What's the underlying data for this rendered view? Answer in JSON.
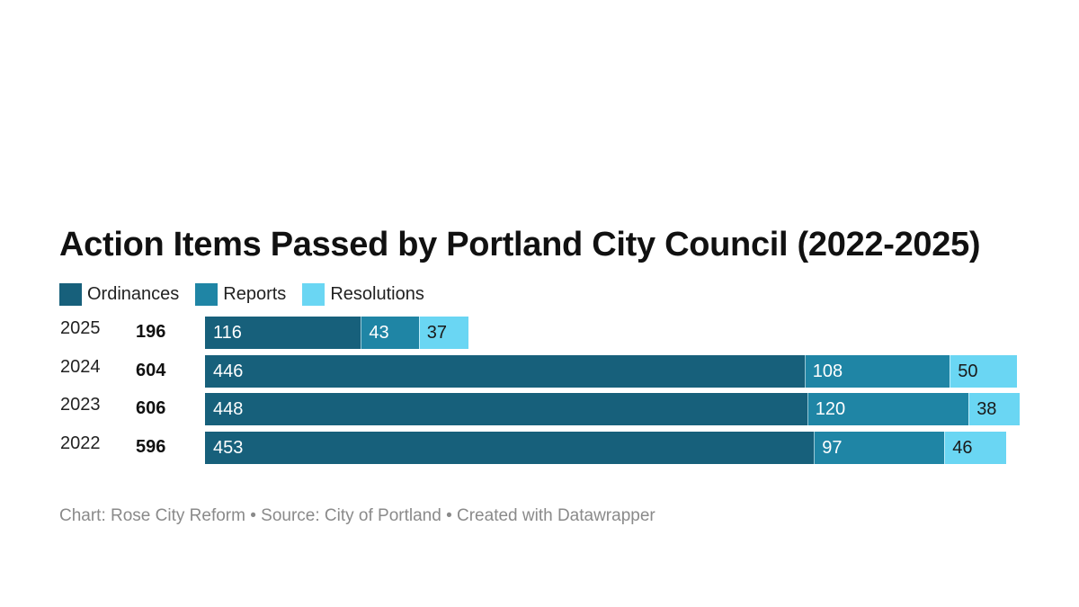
{
  "chart_data": {
    "type": "bar",
    "orientation": "horizontal",
    "stacked": true,
    "title": "Action Items Passed by Portland City Council (2022-2025)",
    "categories": [
      "2025",
      "2024",
      "2023",
      "2022"
    ],
    "totals": [
      "196",
      "604",
      "606",
      "596"
    ],
    "series": [
      {
        "name": "Ordinances",
        "color": "#17607b",
        "label_color": "#ffffff",
        "values": [
          116,
          446,
          448,
          453
        ]
      },
      {
        "name": "Reports",
        "color": "#1f85a5",
        "label_color": "#ffffff",
        "values": [
          43,
          108,
          120,
          97
        ]
      },
      {
        "name": "Resolutions",
        "color": "#6ad6f3",
        "label_color": "#1a1a1a",
        "values": [
          37,
          50,
          38,
          46
        ]
      }
    ],
    "xlim": [
      0,
      606
    ],
    "grid": false,
    "legend_position": "top-left"
  },
  "footer": {
    "text": "Chart: Rose City Reform • Source: City of Portland • Created with Datawrapper"
  }
}
